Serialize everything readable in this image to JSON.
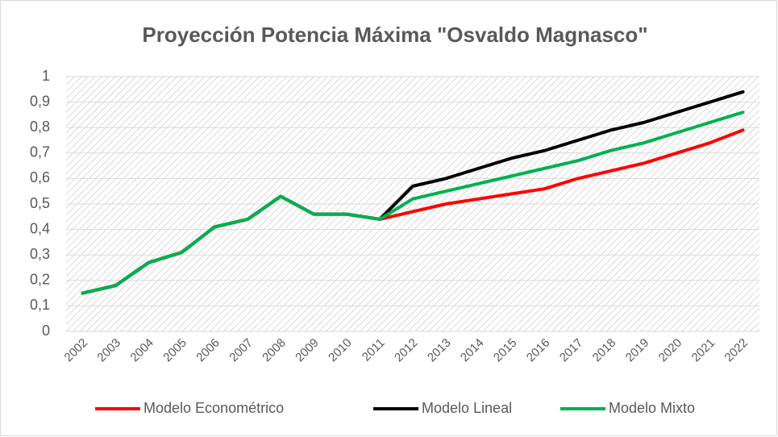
{
  "chart_data": {
    "type": "line",
    "title": "Proyección Potencia Máxima \"Osvaldo Magnasco\"",
    "categories": [
      "2002",
      "2003",
      "2004",
      "2005",
      "2006",
      "2007",
      "2008",
      "2009",
      "2010",
      "2011",
      "2012",
      "2013",
      "2014",
      "2015",
      "2016",
      "2017",
      "2018",
      "2019",
      "2020",
      "2021",
      "2022"
    ],
    "series": [
      {
        "name": "Modelo Econométrico",
        "color": "#ff0000",
        "values": [
          0.15,
          0.18,
          0.27,
          0.31,
          0.41,
          0.44,
          0.53,
          0.46,
          0.46,
          0.44,
          0.47,
          0.5,
          0.52,
          0.54,
          0.56,
          0.6,
          0.63,
          0.66,
          0.7,
          0.74,
          0.79
        ]
      },
      {
        "name": "Modelo Lineal",
        "color": "#000000",
        "values": [
          0.15,
          0.18,
          0.27,
          0.31,
          0.41,
          0.44,
          0.53,
          0.46,
          0.46,
          0.44,
          0.57,
          0.6,
          0.64,
          0.68,
          0.71,
          0.75,
          0.79,
          0.82,
          0.86,
          0.9,
          0.94
        ]
      },
      {
        "name": "Modelo Mixto",
        "color": "#00b050",
        "values": [
          0.15,
          0.18,
          0.27,
          0.31,
          0.41,
          0.44,
          0.53,
          0.46,
          0.46,
          0.44,
          0.52,
          0.55,
          0.58,
          0.61,
          0.64,
          0.67,
          0.71,
          0.74,
          0.78,
          0.82,
          0.86
        ]
      }
    ],
    "ylim": [
      0,
      1
    ],
    "yticks": [
      0,
      {
        "value": 0.1,
        "label": "0,1"
      },
      {
        "value": 0.2,
        "label": "0,2"
      },
      {
        "value": 0.3,
        "label": "0,3"
      },
      {
        "value": 0.4,
        "label": "0,4"
      },
      {
        "value": 0.5,
        "label": "0,5"
      },
      {
        "value": 0.6,
        "label": "0,6"
      },
      {
        "value": 0.7,
        "label": "0,7"
      },
      {
        "value": 0.8,
        "label": "0,8"
      },
      {
        "value": 0.9,
        "label": "0,9"
      },
      1
    ],
    "grid": true,
    "legend": "bottom"
  }
}
